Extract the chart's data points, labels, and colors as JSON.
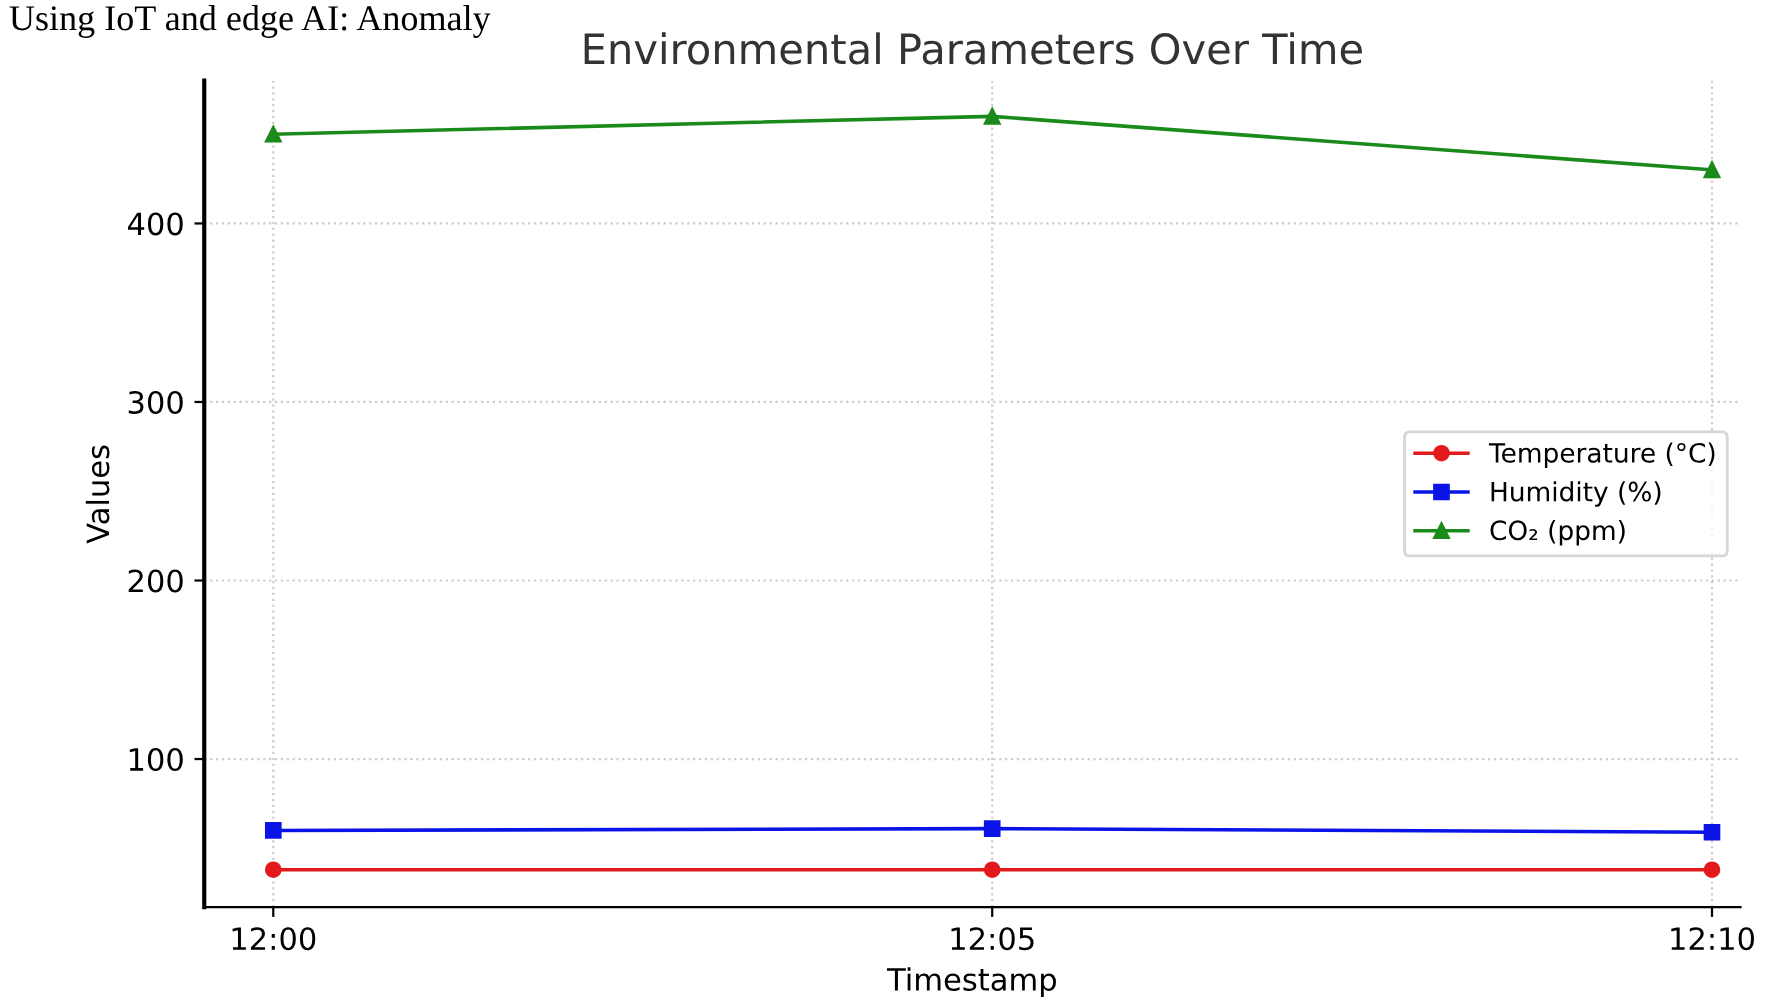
{
  "chart_data": {
    "type": "line",
    "title": "Environmental Parameters Over Time",
    "xlabel": "Timestamp",
    "ylabel": "Values",
    "annotations": [
      "Using IoT and edge AI: Anomaly"
    ],
    "x": [
      12,
      12.0833,
      12.1667
    ],
    "xlim": [
      11.992,
      12.17
    ],
    "xticks": [
      {
        "value": 12,
        "label": "12:00"
      },
      {
        "value": 12.0833,
        "label": "12:05"
      },
      {
        "value": 12.1667,
        "label": "12:10"
      }
    ],
    "series": [
      {
        "name": "Temperature (°C)",
        "color": "#e31a1c",
        "marker": "circle",
        "values": [
          38,
          38,
          38
        ]
      },
      {
        "name": "Humidity (%)",
        "color": "#0a14e6",
        "marker": "square",
        "values": [
          60,
          61,
          59
        ]
      },
      {
        "name": "CO₂ (ppm)",
        "color": "#1a8a1a",
        "marker": "triangle",
        "values": [
          450,
          460,
          430
        ]
      }
    ],
    "ylim": [
      17,
      480
    ],
    "yticks": [
      100,
      200,
      300,
      400
    ],
    "grid": true,
    "legend": "center right",
    "line_style": "solid"
  }
}
